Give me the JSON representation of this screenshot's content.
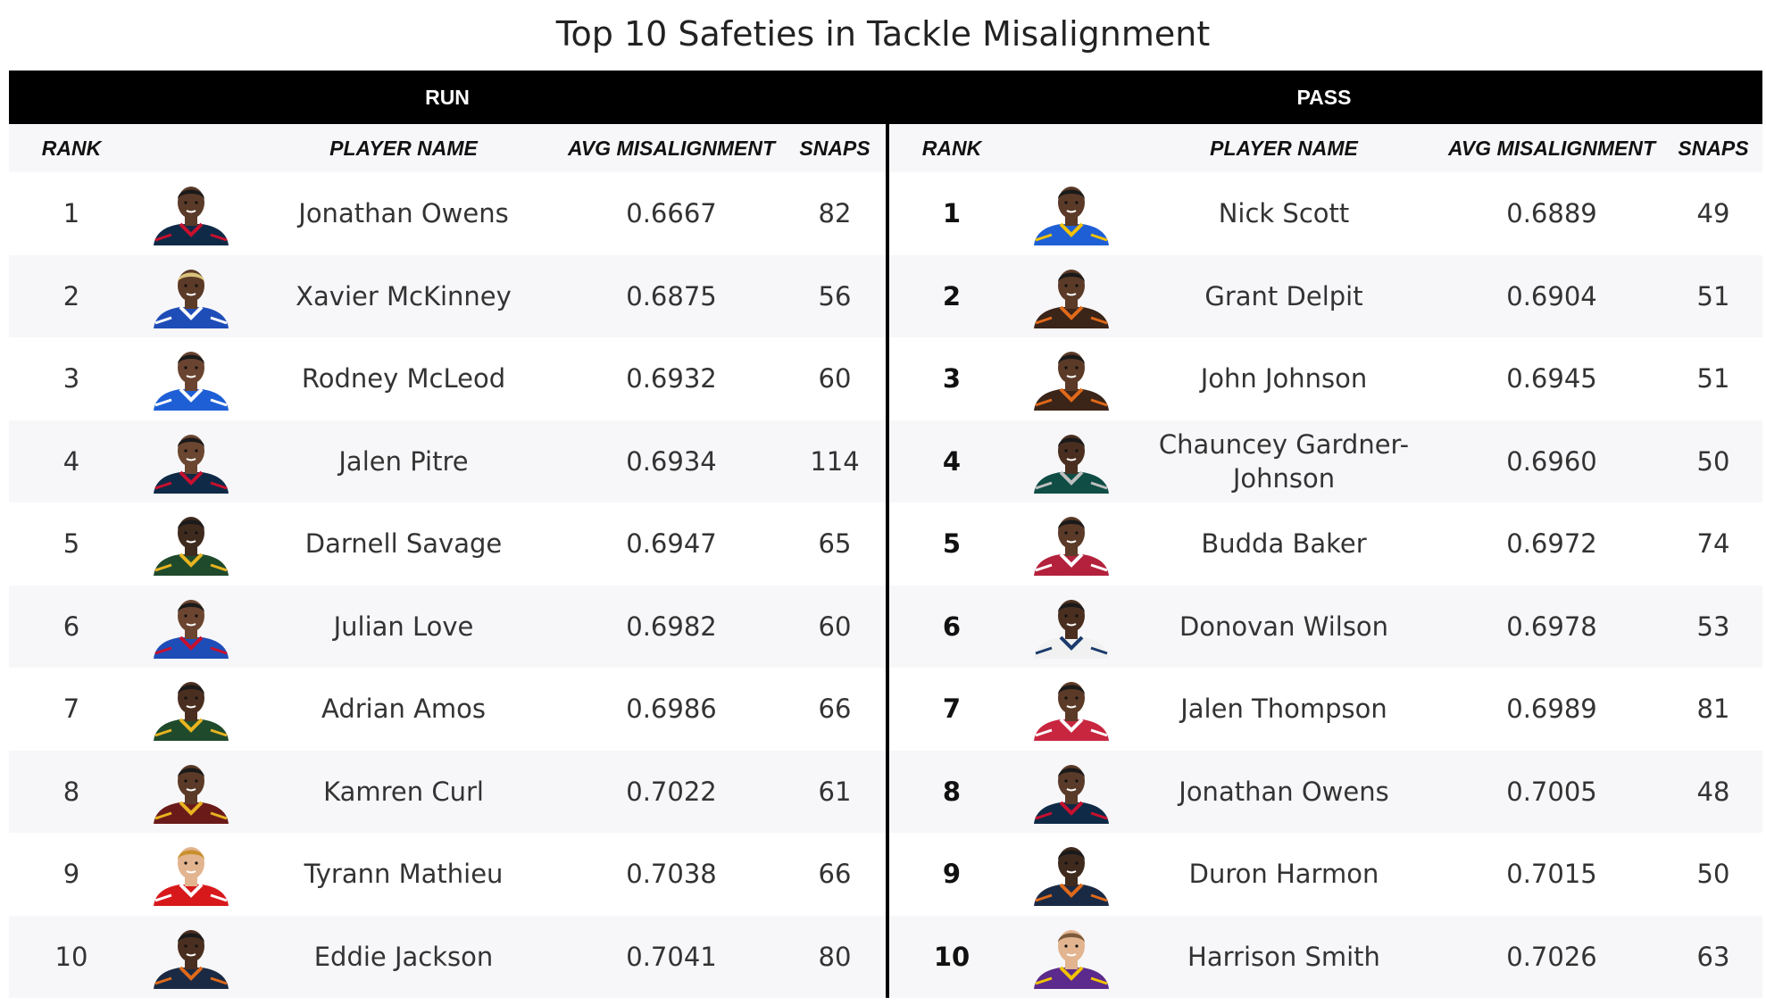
{
  "title": "Top 10 Safeties in Tackle Misalignment",
  "groups": {
    "run": "RUN",
    "pass": "PASS"
  },
  "columns": {
    "rank": "RANK",
    "player": "PLAYER NAME",
    "avg": "AVG MISALIGNMENT",
    "snaps": "SNAPS"
  },
  "run": [
    {
      "rank": "1",
      "name": "Jonathan Owens",
      "avg": "0.6667",
      "snaps": "82",
      "skin": "#5a3a28",
      "jersey": "#0e2a47",
      "trim": "#c8102e",
      "hair": "#1a1a1a"
    },
    {
      "rank": "2",
      "name": "Xavier McKinney",
      "avg": "0.6875",
      "snaps": "56",
      "skin": "#5b3a27",
      "jersey": "#1f4db8",
      "trim": "#ffffff",
      "hair": "#d9c27a"
    },
    {
      "rank": "3",
      "name": "Rodney McLeod",
      "avg": "0.6932",
      "snaps": "60",
      "skin": "#6a4430",
      "jersey": "#1e5fd6",
      "trim": "#ffffff",
      "hair": "#1a1a1a"
    },
    {
      "rank": "4",
      "name": "Jalen Pitre",
      "avg": "0.6934",
      "snaps": "114",
      "skin": "#6b4631",
      "jersey": "#0e2a47",
      "trim": "#c8102e",
      "hair": "#1a1a1a"
    },
    {
      "rank": "5",
      "name": "Darnell Savage",
      "avg": "0.6947",
      "snaps": "65",
      "skin": "#3f2a1e",
      "jersey": "#1f4a2c",
      "trim": "#e8b420",
      "hair": "#1a1a1a"
    },
    {
      "rank": "6",
      "name": "Julian Love",
      "avg": "0.6982",
      "snaps": "60",
      "skin": "#6c4530",
      "jersey": "#1f4db8",
      "trim": "#c8102e",
      "hair": "#1a1a1a"
    },
    {
      "rank": "7",
      "name": "Adrian Amos",
      "avg": "0.6986",
      "snaps": "66",
      "skin": "#4a2f20",
      "jersey": "#1f4a2c",
      "trim": "#e8b420",
      "hair": "#1a1a1a"
    },
    {
      "rank": "8",
      "name": "Kamren Curl",
      "avg": "0.7022",
      "snaps": "61",
      "skin": "#5b3a27",
      "jersey": "#6b1a1a",
      "trim": "#e8b420",
      "hair": "#1a1a1a"
    },
    {
      "rank": "9",
      "name": "Tyrann Mathieu",
      "avg": "0.7038",
      "snaps": "66",
      "skin": "#e2b48f",
      "jersey": "#d7191c",
      "trim": "#ffffff",
      "hair": "#c98f2a"
    },
    {
      "rank": "10",
      "name": "Eddie Jackson",
      "avg": "0.7041",
      "snaps": "80",
      "skin": "#4a2f20",
      "jersey": "#1b2a44",
      "trim": "#e06a1a",
      "hair": "#1a1a1a"
    }
  ],
  "pass": [
    {
      "rank": "1",
      "name": "Nick Scott",
      "avg": "0.6889",
      "snaps": "49",
      "skin": "#5b3a27",
      "jersey": "#1e5fd6",
      "trim": "#f2c200",
      "hair": "#1a1a1a"
    },
    {
      "rank": "2",
      "name": "Grant Delpit",
      "avg": "0.6904",
      "snaps": "51",
      "skin": "#5b3a27",
      "jersey": "#3b2418",
      "trim": "#e06a1a",
      "hair": "#1a1a1a"
    },
    {
      "rank": "3",
      "name": "John Johnson",
      "avg": "0.6945",
      "snaps": "51",
      "skin": "#5b3a27",
      "jersey": "#3b2418",
      "trim": "#e06a1a",
      "hair": "#1a1a1a"
    },
    {
      "rank": "4",
      "name": "Chauncey Gardner-Johnson",
      "avg": "0.6960",
      "snaps": "50",
      "skin": "#4a2f20",
      "jersey": "#0f4d45",
      "trim": "#c0c0c0",
      "hair": "#1a1a1a"
    },
    {
      "rank": "5",
      "name": "Budda Baker",
      "avg": "0.6972",
      "snaps": "74",
      "skin": "#5b3a27",
      "jersey": "#b3213c",
      "trim": "#ffffff",
      "hair": "#1a1a1a"
    },
    {
      "rank": "6",
      "name": "Donovan Wilson",
      "avg": "0.6978",
      "snaps": "53",
      "skin": "#4a2f20",
      "jersey": "#f1f1f1",
      "trim": "#1b3a6b",
      "hair": "#1a1a1a"
    },
    {
      "rank": "7",
      "name": "Jalen Thompson",
      "avg": "0.6989",
      "snaps": "81",
      "skin": "#5b3a27",
      "jersey": "#c8253f",
      "trim": "#ffffff",
      "hair": "#1a1a1a"
    },
    {
      "rank": "8",
      "name": "Jonathan Owens",
      "avg": "0.7005",
      "snaps": "48",
      "skin": "#5a3a28",
      "jersey": "#0e2a47",
      "trim": "#c8102e",
      "hair": "#1a1a1a"
    },
    {
      "rank": "9",
      "name": "Duron Harmon",
      "avg": "0.7015",
      "snaps": "50",
      "skin": "#3f2a1e",
      "jersey": "#1b2a44",
      "trim": "#e06a1a",
      "hair": "#1a1a1a"
    },
    {
      "rank": "10",
      "name": "Harrison Smith",
      "avg": "0.7026",
      "snaps": "63",
      "skin": "#e2b48f",
      "jersey": "#5b2a8c",
      "trim": "#f2c200",
      "hair": "#7a5a3a"
    }
  ]
}
